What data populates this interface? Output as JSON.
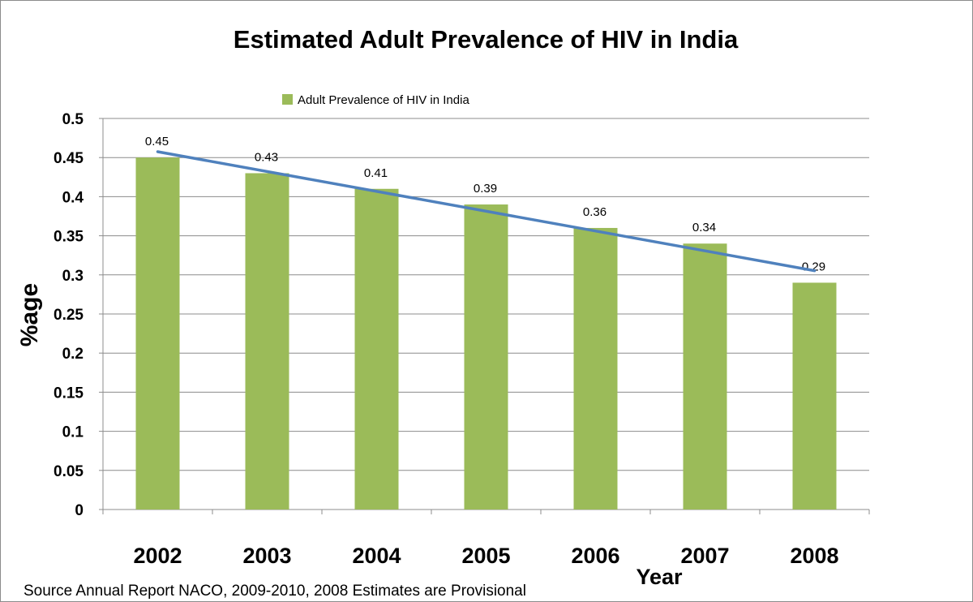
{
  "chart_data": {
    "type": "bar",
    "title": "Estimated Adult Prevalence of HIV in India",
    "xlabel": "Year",
    "ylabel": "%age",
    "categories": [
      "2002",
      "2003",
      "2004",
      "2005",
      "2006",
      "2007",
      "2008"
    ],
    "series": [
      {
        "name": "Adult Prevalence of HIV in India",
        "values": [
          0.45,
          0.43,
          0.41,
          0.39,
          0.36,
          0.34,
          0.29
        ],
        "data_labels": [
          "0.45",
          "0.43",
          "0.41",
          "0.39",
          "0.36",
          "0.34",
          "0.29"
        ],
        "color": "#9bbb59"
      }
    ],
    "trendline": {
      "type": "linear",
      "color": "#4f81bd"
    },
    "ylim": [
      0,
      0.5
    ],
    "yticks": [
      "0",
      "0.05",
      "0.1",
      "0.15",
      "0.2",
      "0.25",
      "0.3",
      "0.35",
      "0.4",
      "0.45",
      "0.5"
    ],
    "grid": true,
    "legend_position": "top",
    "source_note": "Source  Annual Report NACO, 2009-2010,  2008  Estimates are Provisional"
  }
}
